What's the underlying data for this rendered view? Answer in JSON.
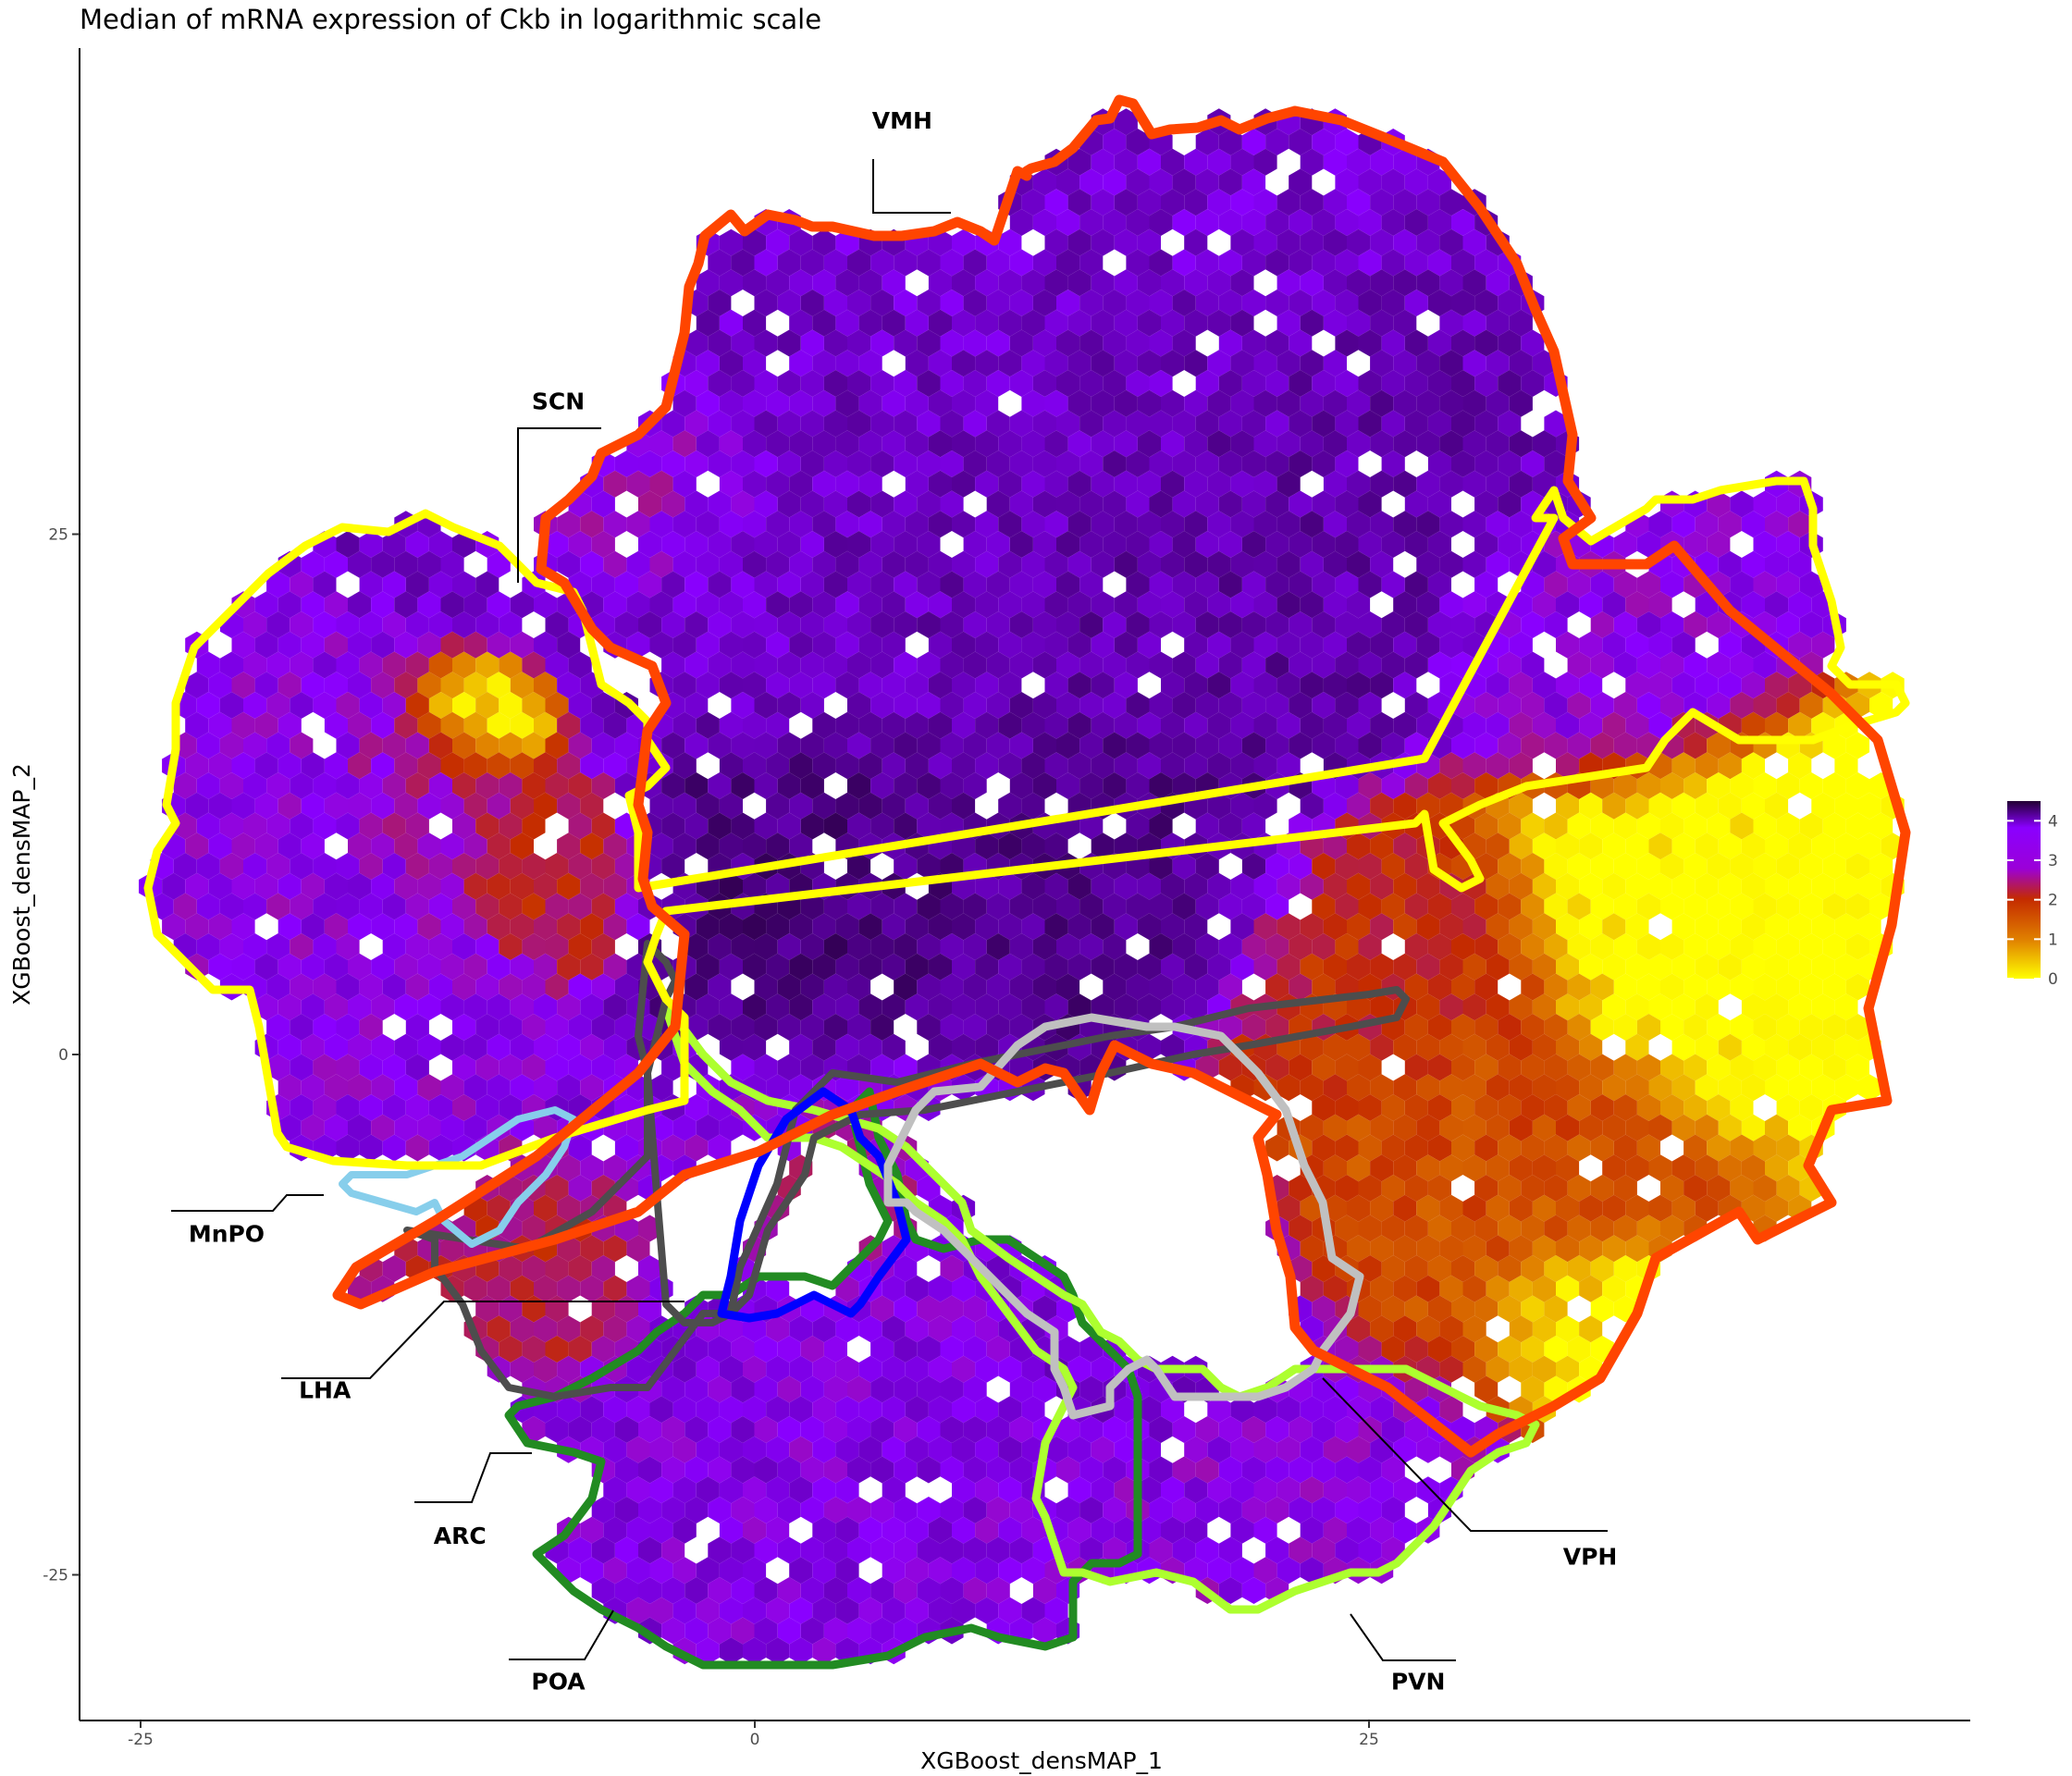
{
  "chart_data": {
    "type": "heatmap",
    "title": "Median of mRNA expression of Ckb in logarithmic scale",
    "xlabel": "XGBoost_densMAP_1",
    "ylabel": "XGBoost_densMAP_2",
    "xlim": [
      -27,
      50
    ],
    "ylim": [
      -32,
      49
    ],
    "x_ticks": [
      -25,
      0,
      25
    ],
    "y_ticks": [
      -25,
      0,
      25
    ],
    "grid": false,
    "legend": "right",
    "colorbar": {
      "min": 0,
      "max": 4.5,
      "ticks": [
        0,
        1,
        2,
        3,
        4
      ],
      "colors": [
        "#ffff00",
        "#e08000",
        "#c42a00",
        "#8a00ff",
        "#220033"
      ]
    },
    "hexbin_layers": [
      {
        "cx": 13,
        "cy": 32,
        "r": 13,
        "v": 3.3
      },
      {
        "cx": 3,
        "cy": 26,
        "r": 11,
        "v": 3.4
      },
      {
        "cx": 14,
        "cy": 26,
        "r": 11,
        "v": 3.7
      },
      {
        "cx": 22,
        "cy": 28,
        "r": 8,
        "v": 3.6
      },
      {
        "cx": 2,
        "cy": 9,
        "r": 6,
        "v": 3.9
      },
      {
        "cx": 14,
        "cy": 9,
        "r": 7,
        "v": 3.8
      },
      {
        "cx": -4,
        "cy": 27,
        "r": 5,
        "v": 2.6
      },
      {
        "cx": -18,
        "cy": 8,
        "r": 8,
        "v": 3.0
      },
      {
        "cx": -13,
        "cy": 12,
        "r": 4,
        "v": 2.5
      },
      {
        "cx": -9,
        "cy": 9,
        "r": 4,
        "v": 2.1
      },
      {
        "cx": -11,
        "cy": 16,
        "r": 2.5,
        "v": 0.2
      },
      {
        "cx": 3,
        "cy": -15,
        "r": 10,
        "v": 3.1
      },
      {
        "cx": -8,
        "cy": -11,
        "r": 4,
        "v": 2.2
      },
      {
        "cx": 3,
        "cy": -8,
        "r": 4,
        "v": 2.4
      },
      {
        "cx": 16,
        "cy": -12,
        "r": 6,
        "v": 3.3
      },
      {
        "cx": 22,
        "cy": -20,
        "r": 6,
        "v": 3.0
      },
      {
        "cx": 30,
        "cy": -6,
        "r": 8,
        "v": 1.6
      },
      {
        "cx": 26,
        "cy": 4,
        "r": 6,
        "v": 2.0
      },
      {
        "cx": 35,
        "cy": 20,
        "r": 6,
        "v": 3.0
      },
      {
        "cx": 40,
        "cy": 6,
        "r": 8,
        "v": 0.0
      },
      {
        "cx": 34,
        "cy": -12,
        "r": 4,
        "v": 0.0
      }
    ],
    "regions": [
      {
        "name": "VMH",
        "color": "#ff4500",
        "label_x": 6,
        "label_y": 44.5
      },
      {
        "name": "SCN",
        "color": "#ffff00",
        "label_x": -8,
        "label_y": 31
      },
      {
        "name": "MnPO",
        "color": "#87ceeb",
        "label_x": -21.5,
        "label_y": -9
      },
      {
        "name": "LHA",
        "color": "#4d4d4d",
        "label_x": -17.5,
        "label_y": -16.5
      },
      {
        "name": "ARC",
        "color": "#0000ff",
        "label_x": -12,
        "label_y": -23.5
      },
      {
        "name": "POA",
        "color": "#228b22",
        "label_x": -8,
        "label_y": -30.5
      },
      {
        "name": "VPH",
        "color": "#c0c0c0",
        "label_x": 34,
        "label_y": -24.5
      },
      {
        "name": "PVN",
        "color": "#adff2f",
        "label_x": 27,
        "label_y": -30.5
      }
    ]
  }
}
